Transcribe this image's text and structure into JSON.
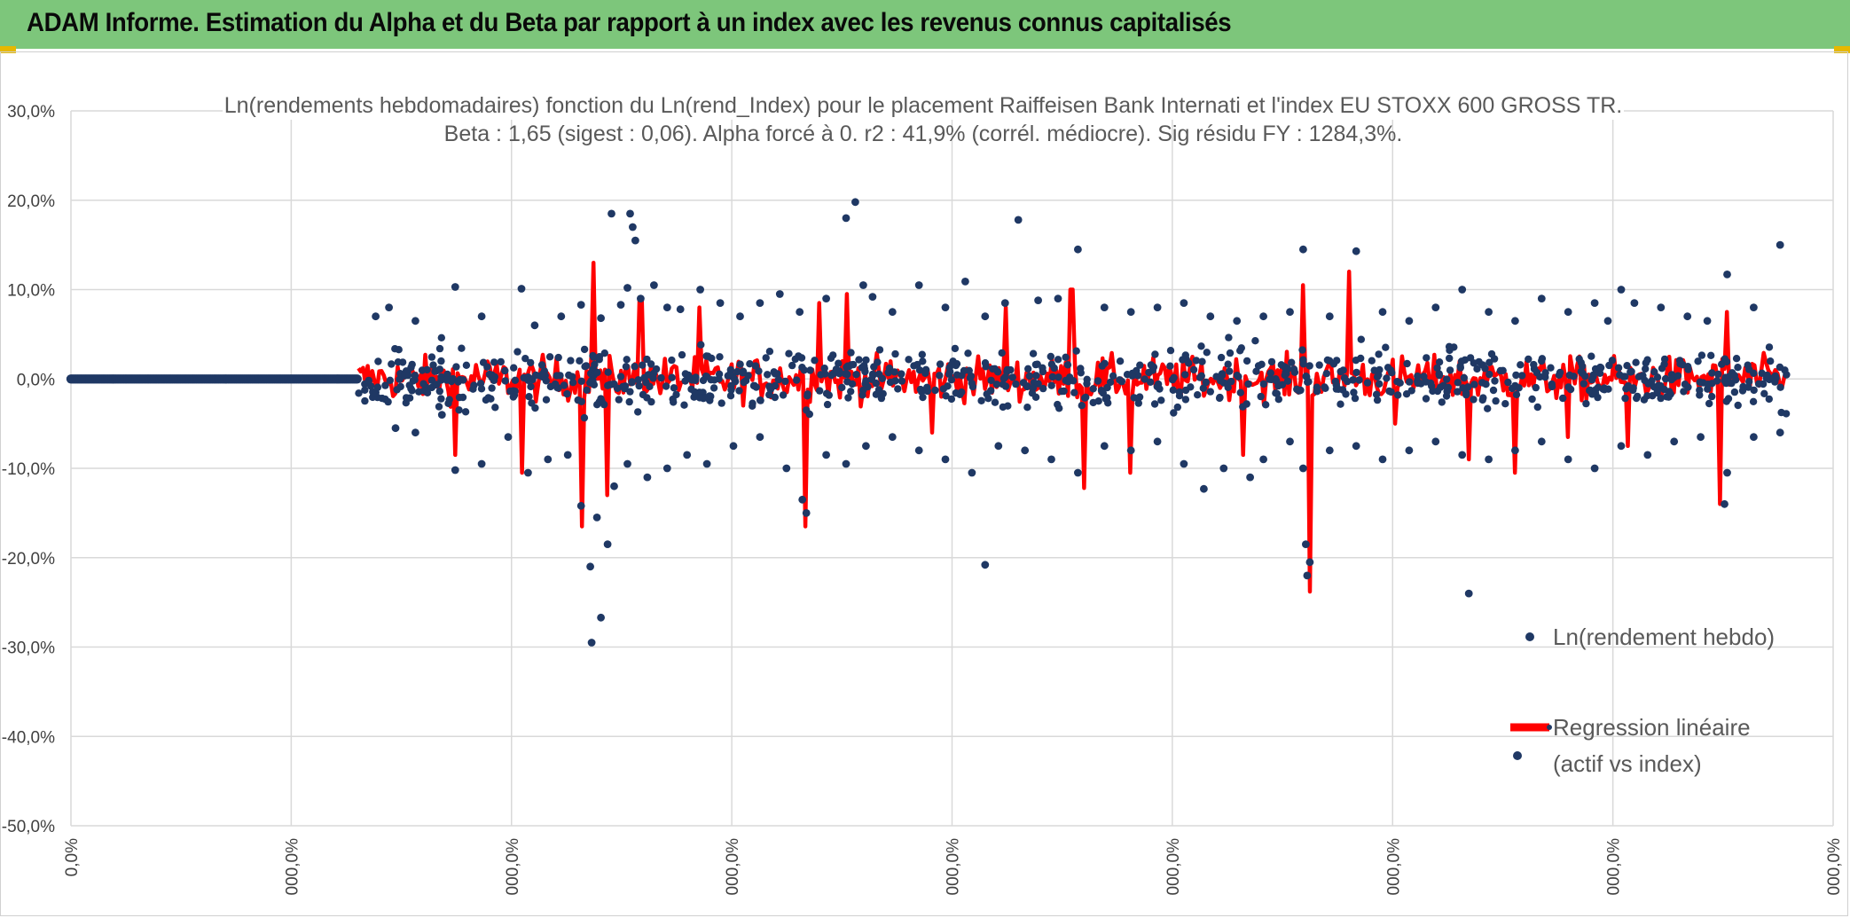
{
  "header": {
    "title": "ADAM Informe. Estimation du Alpha et du Beta par rapport à un index avec les revenus connus capitalisés"
  },
  "colors": {
    "header_bg": "#7dc67b",
    "scatter": "#1f3864",
    "regression": "#ff0000",
    "grid": "#d9d9d9"
  },
  "chart_data": {
    "type": "scatter",
    "title": "Ln(rendements hebdomadaires) fonction du Ln(rend_Index) pour le placement Raiffeisen Bank Internati et l'index EU STOXX 600 GROSS TR.",
    "subtitle": "Beta : 1,65 (sigest : 0,06). Alpha forcé à 0. r2 : 41,9% (corrél. médiocre). Sig résidu FY : 1284,3%.",
    "ylim": [
      -50,
      30
    ],
    "y_ticks": [
      "30,0%",
      "20,0%",
      "10,0%",
      "0,0%",
      "-10,0%",
      "-20,0%",
      "-30,0%",
      "-40,0%",
      "-50,0%"
    ],
    "x_ticks": [
      "0,0%",
      "000,0%",
      "000,0%",
      "000,0%",
      "000,0%",
      "000,0%",
      "000,0%",
      "000,0%",
      "000,0%"
    ],
    "legend": {
      "position": "bottom-right",
      "series1": "Ln(rendement hebdo)",
      "series2_line1": "Regression linéaire",
      "series2_line2": "(actif vs index)"
    },
    "series": [
      {
        "name": "Ln(rendement hebdo)",
        "kind": "scatter",
        "flat_segment": {
          "x_from": 0,
          "x_to": 2.17,
          "y": 0
        },
        "points": [
          [
            2.3,
            7.0
          ],
          [
            2.4,
            8.0
          ],
          [
            2.6,
            6.5
          ],
          [
            2.9,
            10.3
          ],
          [
            3.1,
            7.0
          ],
          [
            3.4,
            10.1
          ],
          [
            3.5,
            6.0
          ],
          [
            3.7,
            7.0
          ],
          [
            3.85,
            8.3
          ],
          [
            4.0,
            6.8
          ],
          [
            4.08,
            18.5
          ],
          [
            4.15,
            8.3
          ],
          [
            4.2,
            10.2
          ],
          [
            4.22,
            18.5
          ],
          [
            4.24,
            17.0
          ],
          [
            4.26,
            15.5
          ],
          [
            4.3,
            9.0
          ],
          [
            4.4,
            10.5
          ],
          [
            4.5,
            8.0
          ],
          [
            4.6,
            7.8
          ],
          [
            4.75,
            10.0
          ],
          [
            4.9,
            8.5
          ],
          [
            5.05,
            7.0
          ],
          [
            5.2,
            8.5
          ],
          [
            5.35,
            9.5
          ],
          [
            5.5,
            7.5
          ],
          [
            5.7,
            9.0
          ],
          [
            5.85,
            18.0
          ],
          [
            5.92,
            19.8
          ],
          [
            5.98,
            10.5
          ],
          [
            6.05,
            9.2
          ],
          [
            6.2,
            7.5
          ],
          [
            6.4,
            10.5
          ],
          [
            6.6,
            8.0
          ],
          [
            6.75,
            10.9
          ],
          [
            6.9,
            7.0
          ],
          [
            7.05,
            8.5
          ],
          [
            7.15,
            17.8
          ],
          [
            7.3,
            8.8
          ],
          [
            7.45,
            9.0
          ],
          [
            7.6,
            14.5
          ],
          [
            7.8,
            8.0
          ],
          [
            8.0,
            7.5
          ],
          [
            8.2,
            8.0
          ],
          [
            8.4,
            8.5
          ],
          [
            8.6,
            7.0
          ],
          [
            8.8,
            6.5
          ],
          [
            9.0,
            7.0
          ],
          [
            9.2,
            7.5
          ],
          [
            9.3,
            14.5
          ],
          [
            9.5,
            7.0
          ],
          [
            9.7,
            14.3
          ],
          [
            9.9,
            7.5
          ],
          [
            10.1,
            6.5
          ],
          [
            10.3,
            8.0
          ],
          [
            10.5,
            10.0
          ],
          [
            10.7,
            7.5
          ],
          [
            10.9,
            6.5
          ],
          [
            11.1,
            9.0
          ],
          [
            11.3,
            7.5
          ],
          [
            11.5,
            8.5
          ],
          [
            11.6,
            6.5
          ],
          [
            11.7,
            10.0
          ],
          [
            11.8,
            8.5
          ],
          [
            12.0,
            8.0
          ],
          [
            12.2,
            7.0
          ],
          [
            12.35,
            6.5
          ],
          [
            12.5,
            11.7
          ],
          [
            12.7,
            8.0
          ],
          [
            12.9,
            15.0
          ],
          [
            2.3,
            -1.5
          ],
          [
            2.45,
            -5.5
          ],
          [
            2.6,
            -6.0
          ],
          [
            2.8,
            -4.0
          ],
          [
            2.9,
            -10.2
          ],
          [
            3.1,
            -9.5
          ],
          [
            3.3,
            -6.5
          ],
          [
            3.45,
            -10.5
          ],
          [
            3.6,
            -9.0
          ],
          [
            3.75,
            -8.5
          ],
          [
            3.85,
            -14.2
          ],
          [
            3.92,
            -21.0
          ],
          [
            3.93,
            -29.5
          ],
          [
            3.97,
            -15.5
          ],
          [
            4.0,
            -26.7
          ],
          [
            4.05,
            -18.5
          ],
          [
            4.1,
            -12.0
          ],
          [
            4.2,
            -9.5
          ],
          [
            4.35,
            -11.0
          ],
          [
            4.5,
            -10.0
          ],
          [
            4.65,
            -8.5
          ],
          [
            4.8,
            -9.5
          ],
          [
            5.0,
            -7.5
          ],
          [
            5.2,
            -6.5
          ],
          [
            5.4,
            -10.0
          ],
          [
            5.52,
            -13.5
          ],
          [
            5.55,
            -15.0
          ],
          [
            5.7,
            -8.5
          ],
          [
            5.85,
            -9.5
          ],
          [
            6.0,
            -7.5
          ],
          [
            6.2,
            -6.5
          ],
          [
            6.4,
            -8.0
          ],
          [
            6.6,
            -9.0
          ],
          [
            6.8,
            -10.5
          ],
          [
            6.9,
            -20.8
          ],
          [
            7.0,
            -7.5
          ],
          [
            7.2,
            -8.0
          ],
          [
            7.4,
            -9.0
          ],
          [
            7.6,
            -10.5
          ],
          [
            7.8,
            -7.5
          ],
          [
            8.0,
            -8.0
          ],
          [
            8.2,
            -7.0
          ],
          [
            8.4,
            -9.5
          ],
          [
            8.55,
            -12.3
          ],
          [
            8.7,
            -10.0
          ],
          [
            8.9,
            -11.0
          ],
          [
            9.0,
            -9.0
          ],
          [
            9.2,
            -7.0
          ],
          [
            9.3,
            -10.0
          ],
          [
            9.32,
            -18.5
          ],
          [
            9.33,
            -22.0
          ],
          [
            9.35,
            -20.5
          ],
          [
            9.5,
            -8.0
          ],
          [
            9.7,
            -7.5
          ],
          [
            9.9,
            -9.0
          ],
          [
            10.1,
            -8.0
          ],
          [
            10.3,
            -7.0
          ],
          [
            10.5,
            -8.5
          ],
          [
            10.55,
            -24.0
          ],
          [
            10.7,
            -9.0
          ],
          [
            10.9,
            -8.0
          ],
          [
            11.1,
            -7.0
          ],
          [
            11.3,
            -9.0
          ],
          [
            11.5,
            -10.0
          ],
          [
            11.7,
            -7.5
          ],
          [
            11.9,
            -8.5
          ],
          [
            12.1,
            -7.0
          ],
          [
            12.3,
            -6.5
          ],
          [
            12.48,
            -14.0
          ],
          [
            12.5,
            -10.5
          ],
          [
            12.7,
            -6.5
          ],
          [
            12.9,
            -6.0
          ]
        ]
      },
      {
        "name": "Regression linéaire (actif vs index)",
        "kind": "line",
        "spikes": [
          [
            2.9,
            -8.5
          ],
          [
            3.4,
            -10.5
          ],
          [
            3.85,
            -16.5
          ],
          [
            3.95,
            13.0
          ],
          [
            4.05,
            -13.0
          ],
          [
            4.3,
            9.0
          ],
          [
            4.75,
            8.0
          ],
          [
            5.55,
            -16.5
          ],
          [
            5.65,
            8.5
          ],
          [
            5.85,
            9.5
          ],
          [
            6.5,
            -6.0
          ],
          [
            7.05,
            8.0
          ],
          [
            7.55,
            10.0
          ],
          [
            7.65,
            -12.2
          ],
          [
            8.0,
            -10.5
          ],
          [
            8.85,
            -8.5
          ],
          [
            9.3,
            10.5
          ],
          [
            9.35,
            -23.8
          ],
          [
            9.65,
            12.0
          ],
          [
            10.0,
            -5.0
          ],
          [
            10.55,
            -9.0
          ],
          [
            10.9,
            -10.5
          ],
          [
            11.3,
            -6.5
          ],
          [
            11.75,
            -7.5
          ],
          [
            12.45,
            -14.0
          ],
          [
            12.5,
            7.5
          ]
        ]
      }
    ]
  }
}
